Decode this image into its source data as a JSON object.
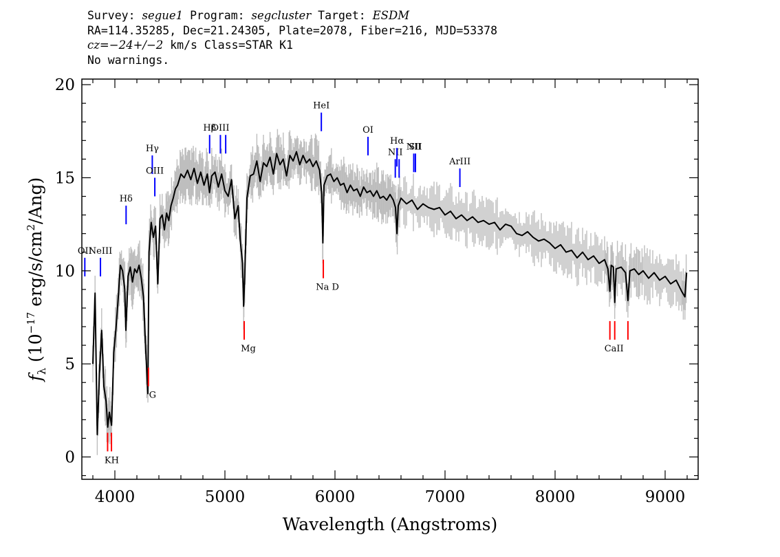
{
  "header": {
    "line1": {
      "survey_label": "Survey: ",
      "survey": "segue1",
      "program_label": " Program: ",
      "program": "segcluster",
      "target_label": " Target: ",
      "target": "ESDM"
    },
    "line2": "RA=114.35285, Dec=21.24305, Plate=2078, Fiber=216, MJD=53378",
    "line3": {
      "cz_label": "cz=",
      "cz_value": "−24+/−2",
      "cz_rest": " km/s Class=STAR K1"
    },
    "line4": "No warnings."
  },
  "chart_data": {
    "type": "line",
    "xlabel": "Wavelength (Angstroms)",
    "ylabel": "fλ (10⁻¹⁷ erg/s/cm²/Ang)",
    "xlim": [
      3700,
      9300
    ],
    "ylim": [
      -1.2,
      20.3
    ],
    "x_ticks": [
      4000,
      5000,
      6000,
      7000,
      8000,
      9000
    ],
    "y_ticks": [
      0,
      5,
      10,
      15,
      20
    ],
    "series": [
      {
        "color": "#000000",
        "points": [
          [
            3800,
            5.0
          ],
          [
            3820,
            8.8
          ],
          [
            3840,
            1.2
          ],
          [
            3860,
            4.5
          ],
          [
            3880,
            6.8
          ],
          [
            3900,
            3.8
          ],
          [
            3920,
            3.0
          ],
          [
            3935,
            1.6
          ],
          [
            3950,
            2.4
          ],
          [
            3970,
            1.7
          ],
          [
            3990,
            5.6
          ],
          [
            4010,
            6.9
          ],
          [
            4030,
            8.5
          ],
          [
            4050,
            10.3
          ],
          [
            4070,
            10.0
          ],
          [
            4090,
            9.0
          ],
          [
            4100,
            6.8
          ],
          [
            4120,
            9.7
          ],
          [
            4140,
            10.2
          ],
          [
            4160,
            9.4
          ],
          [
            4180,
            10.1
          ],
          [
            4200,
            9.9
          ],
          [
            4220,
            10.3
          ],
          [
            4240,
            9.6
          ],
          [
            4260,
            8.6
          ],
          [
            4280,
            5.8
          ],
          [
            4300,
            3.4
          ],
          [
            4310,
            11.0
          ],
          [
            4330,
            12.6
          ],
          [
            4350,
            11.8
          ],
          [
            4370,
            12.4
          ],
          [
            4390,
            9.3
          ],
          [
            4410,
            12.8
          ],
          [
            4430,
            13.0
          ],
          [
            4450,
            12.2
          ],
          [
            4470,
            13.1
          ],
          [
            4490,
            12.7
          ],
          [
            4510,
            13.5
          ],
          [
            4530,
            13.9
          ],
          [
            4550,
            14.4
          ],
          [
            4570,
            14.6
          ],
          [
            4600,
            15.2
          ],
          [
            4630,
            15.0
          ],
          [
            4660,
            15.4
          ],
          [
            4690,
            14.9
          ],
          [
            4720,
            15.5
          ],
          [
            4750,
            14.7
          ],
          [
            4780,
            15.3
          ],
          [
            4810,
            14.6
          ],
          [
            4840,
            15.2
          ],
          [
            4860,
            14.2
          ],
          [
            4880,
            15.1
          ],
          [
            4910,
            15.3
          ],
          [
            4940,
            14.5
          ],
          [
            4970,
            15.2
          ],
          [
            5000,
            14.3
          ],
          [
            5030,
            14.0
          ],
          [
            5060,
            14.9
          ],
          [
            5090,
            12.8
          ],
          [
            5120,
            13.5
          ],
          [
            5140,
            11.6
          ],
          [
            5160,
            10.4
          ],
          [
            5170,
            8.1
          ],
          [
            5180,
            9.7
          ],
          [
            5200,
            13.9
          ],
          [
            5230,
            15.1
          ],
          [
            5260,
            15.2
          ],
          [
            5290,
            15.9
          ],
          [
            5320,
            14.8
          ],
          [
            5350,
            15.8
          ],
          [
            5380,
            15.6
          ],
          [
            5410,
            16.1
          ],
          [
            5440,
            15.2
          ],
          [
            5470,
            16.3
          ],
          [
            5500,
            15.7
          ],
          [
            5530,
            16.0
          ],
          [
            5560,
            15.1
          ],
          [
            5590,
            16.2
          ],
          [
            5620,
            15.9
          ],
          [
            5650,
            16.4
          ],
          [
            5680,
            15.7
          ],
          [
            5710,
            16.2
          ],
          [
            5740,
            15.8
          ],
          [
            5770,
            16.0
          ],
          [
            5800,
            15.6
          ],
          [
            5830,
            15.9
          ],
          [
            5860,
            15.4
          ],
          [
            5880,
            14.1
          ],
          [
            5890,
            11.5
          ],
          [
            5900,
            14.6
          ],
          [
            5930,
            15.1
          ],
          [
            5960,
            15.2
          ],
          [
            5990,
            14.8
          ],
          [
            6020,
            15.0
          ],
          [
            6050,
            14.6
          ],
          [
            6080,
            14.7
          ],
          [
            6110,
            14.2
          ],
          [
            6140,
            14.6
          ],
          [
            6170,
            14.3
          ],
          [
            6200,
            14.4
          ],
          [
            6230,
            14.0
          ],
          [
            6260,
            14.5
          ],
          [
            6290,
            14.2
          ],
          [
            6320,
            14.3
          ],
          [
            6350,
            14.0
          ],
          [
            6380,
            14.3
          ],
          [
            6410,
            13.9
          ],
          [
            6440,
            14.0
          ],
          [
            6470,
            13.8
          ],
          [
            6500,
            14.1
          ],
          [
            6530,
            13.8
          ],
          [
            6550,
            13.4
          ],
          [
            6563,
            12.0
          ],
          [
            6575,
            13.5
          ],
          [
            6600,
            13.9
          ],
          [
            6650,
            13.6
          ],
          [
            6700,
            13.8
          ],
          [
            6750,
            13.3
          ],
          [
            6800,
            13.6
          ],
          [
            6850,
            13.4
          ],
          [
            6900,
            13.3
          ],
          [
            6950,
            13.4
          ],
          [
            7000,
            13.0
          ],
          [
            7050,
            13.2
          ],
          [
            7100,
            12.8
          ],
          [
            7150,
            13.0
          ],
          [
            7200,
            12.7
          ],
          [
            7250,
            12.9
          ],
          [
            7300,
            12.6
          ],
          [
            7350,
            12.7
          ],
          [
            7400,
            12.5
          ],
          [
            7450,
            12.6
          ],
          [
            7500,
            12.2
          ],
          [
            7550,
            12.5
          ],
          [
            7600,
            12.4
          ],
          [
            7650,
            12.0
          ],
          [
            7700,
            11.9
          ],
          [
            7750,
            12.1
          ],
          [
            7800,
            11.8
          ],
          [
            7850,
            11.6
          ],
          [
            7900,
            11.7
          ],
          [
            7950,
            11.5
          ],
          [
            8000,
            11.2
          ],
          [
            8050,
            11.4
          ],
          [
            8100,
            11.0
          ],
          [
            8150,
            11.1
          ],
          [
            8200,
            10.7
          ],
          [
            8250,
            11.0
          ],
          [
            8300,
            10.6
          ],
          [
            8350,
            10.8
          ],
          [
            8400,
            10.4
          ],
          [
            8450,
            10.6
          ],
          [
            8480,
            10.1
          ],
          [
            8498,
            8.9
          ],
          [
            8510,
            10.3
          ],
          [
            8530,
            10.2
          ],
          [
            8542,
            8.3
          ],
          [
            8555,
            10.1
          ],
          [
            8600,
            10.2
          ],
          [
            8640,
            9.9
          ],
          [
            8662,
            8.4
          ],
          [
            8680,
            10.0
          ],
          [
            8720,
            10.1
          ],
          [
            8760,
            9.8
          ],
          [
            8800,
            10.0
          ],
          [
            8850,
            9.6
          ],
          [
            8900,
            9.9
          ],
          [
            8950,
            9.5
          ],
          [
            9000,
            9.7
          ],
          [
            9050,
            9.3
          ],
          [
            9100,
            9.5
          ],
          [
            9150,
            8.9
          ],
          [
            9180,
            8.6
          ],
          [
            9195,
            9.9
          ]
        ]
      }
    ],
    "emission_lines": [
      {
        "label": "OII",
        "x": 3727,
        "y1": 9.7,
        "y2": 10.7
      },
      {
        "label": "NeIII",
        "x": 3869,
        "y1": 9.7,
        "y2": 10.7
      },
      {
        "label": "Hδ",
        "x": 4102,
        "y1": 12.5,
        "y2": 13.5
      },
      {
        "label": "Hγ",
        "x": 4340,
        "y1": 15.2,
        "y2": 16.2
      },
      {
        "label": "OIII",
        "x": 4363,
        "y1": 14.0,
        "y2": 15.0
      },
      {
        "label": "Hβ",
        "x": 4861,
        "y1": 16.3,
        "y2": 17.3
      },
      {
        "label": "OIII",
        "x": 4959,
        "y1": 16.3,
        "y2": 17.3
      },
      {
        "label": "",
        "x": 5007,
        "y1": 16.3,
        "y2": 17.3
      },
      {
        "label": "HeI",
        "x": 5876,
        "y1": 17.5,
        "y2": 18.5
      },
      {
        "label": "OI",
        "x": 6300,
        "y1": 16.2,
        "y2": 17.2
      },
      {
        "label": "NII",
        "x": 6548,
        "y1": 15.0,
        "y2": 16.0
      },
      {
        "label": "Hα",
        "x": 6563,
        "y1": 15.6,
        "y2": 16.6
      },
      {
        "label": "",
        "x": 6583,
        "y1": 15.0,
        "y2": 16.0
      },
      {
        "label": "NII",
        "x": 6716,
        "y1": 15.3,
        "y2": 16.3
      },
      {
        "label": "SII",
        "x": 6731,
        "y1": 15.3,
        "y2": 16.3
      },
      {
        "label": "ArIII",
        "x": 7135,
        "y1": 14.5,
        "y2": 15.5
      }
    ],
    "absorption_lines": [
      {
        "label": "KH",
        "x": 3934,
        "y1": 0.3,
        "y2": 1.3
      },
      {
        "label": "",
        "x": 3969,
        "y1": 0.3,
        "y2": 1.3
      },
      {
        "label": "G",
        "x": 4305,
        "y1": 3.8,
        "y2": 4.8
      },
      {
        "label": "Mg",
        "x": 5175,
        "y1": 6.3,
        "y2": 7.3
      },
      {
        "label": "Na D",
        "x": 5894,
        "y1": 9.6,
        "y2": 10.6
      },
      {
        "label": "CaII",
        "x": 8498,
        "y1": 6.3,
        "y2": 7.3
      },
      {
        "label": "",
        "x": 8542,
        "y1": 6.3,
        "y2": 7.3
      },
      {
        "label": "",
        "x": 8662,
        "y1": 6.3,
        "y2": 7.3
      }
    ],
    "colors": {
      "spectrum": "#000000",
      "error": "#bdbdbd",
      "emission": "#0000ff",
      "absorption": "#ff0000"
    }
  }
}
